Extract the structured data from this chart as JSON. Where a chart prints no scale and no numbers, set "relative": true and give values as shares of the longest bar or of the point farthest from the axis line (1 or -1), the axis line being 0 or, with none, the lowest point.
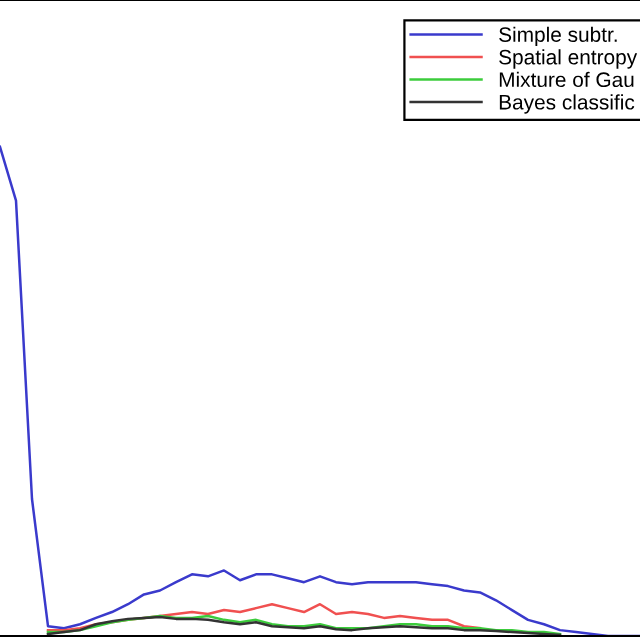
{
  "chart_data": {
    "type": "line",
    "relative": true,
    "legend": "top right",
    "categories": [
      null,
      null,
      null,
      null,
      null,
      null,
      null,
      null,
      null,
      null,
      null,
      null,
      null,
      null,
      null,
      null,
      null,
      null,
      null,
      null,
      null,
      null,
      null,
      null,
      null,
      null,
      null,
      null,
      null,
      null,
      null,
      null,
      null,
      null,
      null,
      null,
      null,
      null,
      null,
      null,
      null
    ],
    "series": [
      {
        "name": "Simple subtr.",
        "color": "#3a3acc",
        "values": [
          1.0,
          0.89,
          0.28,
          0.02,
          0.016,
          0.024,
          0.037,
          0.049,
          0.065,
          0.085,
          0.093,
          0.11,
          0.126,
          0.122,
          0.134,
          0.114,
          0.126,
          0.126,
          0.118,
          0.11,
          0.122,
          0.11,
          0.106,
          0.11,
          0.11,
          0.11,
          0.11,
          0.106,
          0.102,
          0.093,
          0.089,
          0.073,
          0.053,
          0.033,
          0.024,
          0.012,
          0.008,
          0.004,
          0.0,
          0.0,
          0.0
        ]
      },
      {
        "name": "Spatial entropy",
        "color": "#f05050",
        "values": [
          null,
          null,
          null,
          0.012,
          0.012,
          0.016,
          0.024,
          0.028,
          0.033,
          0.037,
          0.041,
          0.045,
          0.049,
          0.045,
          0.053,
          0.049,
          0.057,
          0.065,
          0.057,
          0.049,
          0.065,
          0.045,
          0.049,
          0.045,
          0.037,
          0.041,
          0.037,
          0.033,
          0.033,
          0.02,
          0.016,
          null,
          null,
          null,
          null,
          null,
          null,
          null,
          null,
          null,
          null
        ]
      },
      {
        "name": "Mixture of Gau",
        "color": "#3ccc3c",
        "values": [
          null,
          null,
          null,
          0.008,
          0.008,
          0.012,
          0.02,
          0.028,
          0.033,
          0.037,
          0.041,
          0.037,
          0.037,
          0.041,
          0.033,
          0.028,
          0.033,
          0.024,
          0.02,
          0.02,
          0.024,
          0.016,
          0.016,
          0.016,
          0.02,
          0.024,
          0.024,
          0.02,
          0.02,
          0.016,
          0.016,
          0.012,
          0.012,
          0.008,
          0.008,
          0.004,
          null,
          null,
          null,
          null,
          null
        ]
      },
      {
        "name": "Bayes classific",
        "color": "#333333",
        "values": [
          null,
          null,
          null,
          0.004,
          0.008,
          0.012,
          0.024,
          0.03,
          0.035,
          0.037,
          0.039,
          0.035,
          0.035,
          0.033,
          0.028,
          0.024,
          0.028,
          0.02,
          0.018,
          0.016,
          0.02,
          0.014,
          0.012,
          0.016,
          0.018,
          0.02,
          0.018,
          0.016,
          0.016,
          0.012,
          0.012,
          0.01,
          0.008,
          0.006,
          0.004,
          0.002,
          null,
          null,
          null,
          null,
          null
        ]
      }
    ]
  }
}
